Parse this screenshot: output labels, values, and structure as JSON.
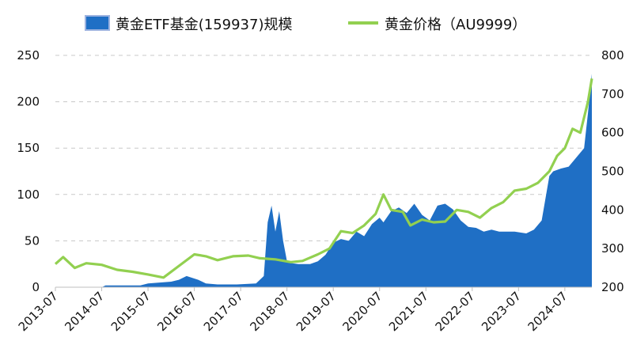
{
  "chart_data": {
    "type": "area+line",
    "legend": [
      {
        "label": "黄金ETF基金(159937)规模",
        "color": "#1f6fc5",
        "kind": "area"
      },
      {
        "label": "黄金价格（AU9999）",
        "color": "#92d050",
        "kind": "line"
      }
    ],
    "legend_placement": "top-center",
    "grid": true,
    "y_left": {
      "ticks": [
        0,
        50,
        100,
        150,
        200,
        250
      ],
      "ylim": [
        0,
        250
      ]
    },
    "y_right": {
      "ticks": [
        200,
        300,
        400,
        500,
        600,
        700,
        800
      ],
      "ylim": [
        200,
        800
      ]
    },
    "x_ticks": [
      "2013-07",
      "2014-07",
      "2015-07",
      "2016-07",
      "2017-07",
      "2018-07",
      "2019-07",
      "2020-07",
      "2021-07",
      "2022-07",
      "2023-07",
      "2024-07"
    ],
    "x_range": [
      "2013-07",
      "2025-02"
    ],
    "series": [
      {
        "name": "黄金ETF基金(159937)规模",
        "axis": "left",
        "type": "area",
        "x": [
          "2013-07",
          "2014-07",
          "2014-08",
          "2015-05",
          "2015-07",
          "2015-10",
          "2016-01",
          "2016-03",
          "2016-05",
          "2016-08",
          "2016-10",
          "2017-01",
          "2017-06",
          "2017-11",
          "2018-01",
          "2018-02",
          "2018-03",
          "2018-04",
          "2018-05",
          "2018-06",
          "2018-07",
          "2018-08",
          "2018-10",
          "2019-01",
          "2019-03",
          "2019-05",
          "2019-07",
          "2019-09",
          "2019-11",
          "2020-01",
          "2020-03",
          "2020-05",
          "2020-07",
          "2020-08",
          "2020-10",
          "2020-12",
          "2021-02",
          "2021-04",
          "2021-06",
          "2021-08",
          "2021-10",
          "2021-12",
          "2022-02",
          "2022-04",
          "2022-06",
          "2022-08",
          "2022-10",
          "2022-12",
          "2023-02",
          "2023-04",
          "2023-06",
          "2023-09",
          "2023-11",
          "2024-01",
          "2024-03",
          "2024-04",
          "2024-06",
          "2024-08",
          "2024-10",
          "2024-12",
          "2025-01",
          "2025-02"
        ],
        "values": [
          0,
          0,
          2,
          2,
          4,
          5,
          6,
          8,
          12,
          8,
          4,
          3,
          3,
          4,
          12,
          70,
          88,
          60,
          82,
          50,
          28,
          26,
          25,
          25,
          28,
          35,
          48,
          52,
          50,
          60,
          55,
          68,
          75,
          70,
          82,
          86,
          80,
          90,
          78,
          72,
          88,
          90,
          84,
          72,
          65,
          64,
          60,
          62,
          60,
          60,
          60,
          58,
          62,
          72,
          120,
          125,
          128,
          130,
          140,
          150,
          188,
          230
        ]
      },
      {
        "name": "黄金价格（AU9999）",
        "axis": "right",
        "type": "line",
        "x": [
          "2013-07",
          "2013-09",
          "2013-12",
          "2014-03",
          "2014-07",
          "2014-11",
          "2015-03",
          "2015-07",
          "2015-11",
          "2016-03",
          "2016-07",
          "2016-10",
          "2017-01",
          "2017-05",
          "2017-09",
          "2017-12",
          "2018-04",
          "2018-08",
          "2018-11",
          "2019-03",
          "2019-06",
          "2019-09",
          "2019-12",
          "2020-03",
          "2020-06",
          "2020-08",
          "2020-10",
          "2021-01",
          "2021-03",
          "2021-06",
          "2021-09",
          "2021-12",
          "2022-03",
          "2022-06",
          "2022-09",
          "2022-12",
          "2023-03",
          "2023-06",
          "2023-09",
          "2023-12",
          "2024-03",
          "2024-05",
          "2024-07",
          "2024-09",
          "2024-11",
          "2025-01",
          "2025-02"
        ],
        "values": [
          260,
          278,
          250,
          262,
          258,
          245,
          240,
          233,
          225,
          255,
          285,
          280,
          270,
          280,
          282,
          275,
          272,
          265,
          268,
          285,
          300,
          345,
          340,
          360,
          390,
          440,
          400,
          395,
          360,
          375,
          368,
          370,
          400,
          395,
          380,
          405,
          420,
          450,
          455,
          470,
          500,
          540,
          560,
          610,
          600,
          680,
          740
        ]
      }
    ]
  }
}
